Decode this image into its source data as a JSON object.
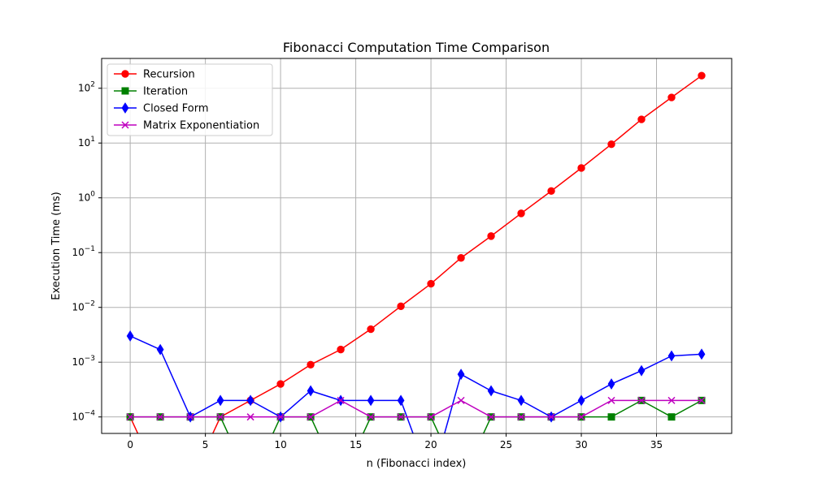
{
  "chart_data": {
    "type": "line",
    "title": "Fibonacci Computation Time Comparison",
    "xlabel": "n (Fibonacci index)",
    "ylabel": "Execution Time (ms)",
    "xlim": [
      -1.9,
      40.0
    ],
    "ylim": [
      5e-05,
      350
    ],
    "yscale": "log",
    "grid": true,
    "legend_position": "top-left",
    "x_ticks": [
      0,
      5,
      10,
      15,
      20,
      25,
      30,
      35
    ],
    "y_ticks": [
      {
        "value": 0.0001,
        "base": "10",
        "exp": "−4"
      },
      {
        "value": 0.001,
        "base": "10",
        "exp": "−3"
      },
      {
        "value": 0.01,
        "base": "10",
        "exp": "−2"
      },
      {
        "value": 0.1,
        "base": "10",
        "exp": "−1"
      },
      {
        "value": 1,
        "base": "10",
        "exp": "0"
      },
      {
        "value": 10,
        "base": "10",
        "exp": "1"
      },
      {
        "value": 100,
        "base": "10",
        "exp": "2"
      }
    ],
    "x": [
      0,
      2,
      4,
      6,
      8,
      10,
      12,
      14,
      16,
      18,
      20,
      22,
      24,
      26,
      28,
      30,
      32,
      34,
      36,
      38
    ],
    "series": [
      {
        "name": "Recursion",
        "color": "#ff0000",
        "marker": "circle",
        "values": [
          0.0001,
          0,
          0,
          0.0001,
          0.0002,
          0.0004,
          0.0009,
          0.0017,
          0.004,
          0.0105,
          0.027,
          0.08,
          0.2,
          0.52,
          1.33,
          3.5,
          9.5,
          27,
          68,
          170
        ]
      },
      {
        "name": "Iteration",
        "color": "#008000",
        "marker": "square",
        "values": [
          0.0001,
          0.0001,
          0.0001,
          0.0001,
          0,
          0.0001,
          0.0001,
          0,
          0.0001,
          0.0001,
          0.0001,
          0,
          0.0001,
          0.0001,
          0.0001,
          0.0001,
          0.0001,
          0.0002,
          0.0001,
          0.0002
        ]
      },
      {
        "name": "Closed Form",
        "color": "#0000ff",
        "marker": "diamond",
        "values": [
          0.003,
          0.0017,
          0.0001,
          0.0002,
          0.0002,
          0.0001,
          0.0003,
          0.0002,
          0.0002,
          0.0002,
          0,
          0.0006,
          0.0003,
          0.0002,
          0.0001,
          0.0002,
          0.0004,
          0.0007,
          0.0013,
          0.0014
        ]
      },
      {
        "name": "Matrix Exponentiation",
        "color": "#bf00bf",
        "marker": "x",
        "values": [
          0.0001,
          0.0001,
          0.0001,
          0.0001,
          0.0001,
          0.0001,
          0.0001,
          0.0002,
          0.0001,
          0.0001,
          0.0001,
          0.0002,
          0.0001,
          0.0001,
          0.0001,
          0.0001,
          0.0002,
          0.0002,
          0.0002,
          0.0002
        ]
      }
    ]
  }
}
